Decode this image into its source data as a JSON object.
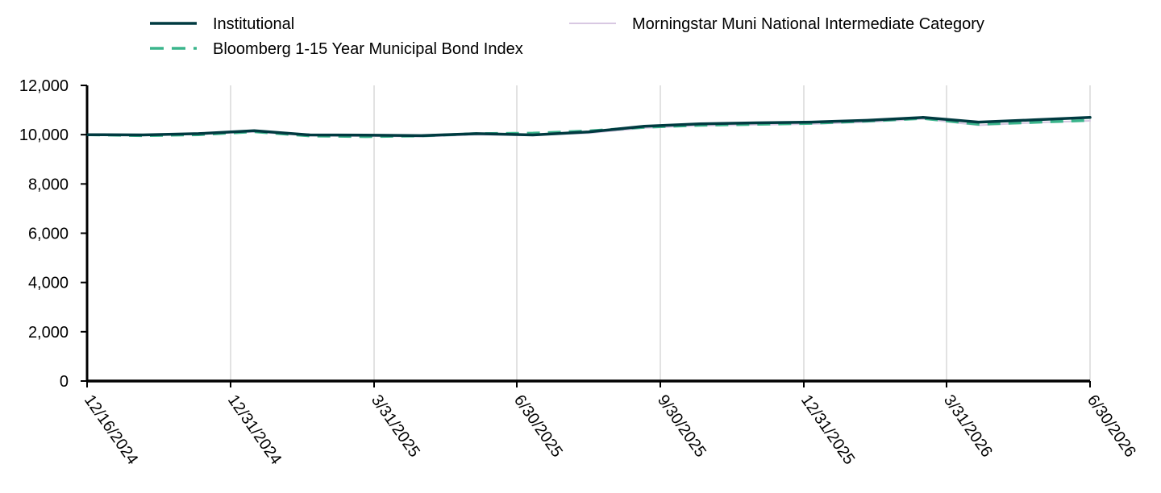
{
  "chart_data": {
    "type": "line",
    "title": "",
    "xlabel": "",
    "ylabel": "",
    "ylim": [
      0,
      12000
    ],
    "y_ticks": [
      "0",
      "2,000",
      "4,000",
      "6,000",
      "8,000",
      "10,000",
      "12,000"
    ],
    "y_tick_values": [
      0,
      2000,
      4000,
      6000,
      8000,
      10000,
      12000
    ],
    "x_tick_labels": [
      "12/16/2024",
      "12/31/2024",
      "3/31/2025",
      "6/30/2025",
      "9/30/2025",
      "12/31/2025",
      "3/31/2026",
      "6/30/2026"
    ],
    "grid": "vertical",
    "legend_position": "top",
    "x_points": [
      "12/16/2024",
      "1/31/2025",
      "2/28/2025",
      "3/31/2025",
      "4/30/2025",
      "5/31/2025",
      "6/30/2025",
      "7/31/2025",
      "8/31/2025",
      "9/30/2025",
      "10/31/2025",
      "11/30/2025",
      "12/31/2025",
      "1/31/2026",
      "2/28/2026",
      "3/31/2026",
      "4/30/2026",
      "5/31/2026",
      "6/30/2026"
    ],
    "series": [
      {
        "name": "Institutional",
        "color": "#003a40",
        "style": "solid",
        "values": [
          10000,
          9990,
          10040,
          10160,
          9990,
          9980,
          9960,
          10040,
          9990,
          10110,
          10340,
          10440,
          10480,
          10510,
          10580,
          10700,
          10510,
          10600,
          10700
        ]
      },
      {
        "name": "Bloomberg 1-15 Year Municipal Bond Index",
        "color": "#3bb58c",
        "style": "dashed",
        "values": [
          10000,
          9960,
          10000,
          10120,
          9950,
          9920,
          9950,
          10040,
          10060,
          10150,
          10300,
          10380,
          10420,
          10460,
          10550,
          10660,
          10420,
          10500,
          10580
        ]
      },
      {
        "name": "Morningstar Muni National Intermediate Category",
        "color": "#d8c8e2",
        "style": "solid",
        "values": [
          10000,
          9990,
          10020,
          10110,
          9960,
          9940,
          9920,
          10000,
          9980,
          10060,
          10270,
          10370,
          10400,
          10430,
          10510,
          10640,
          10380,
          10490,
          10560
        ]
      }
    ]
  }
}
